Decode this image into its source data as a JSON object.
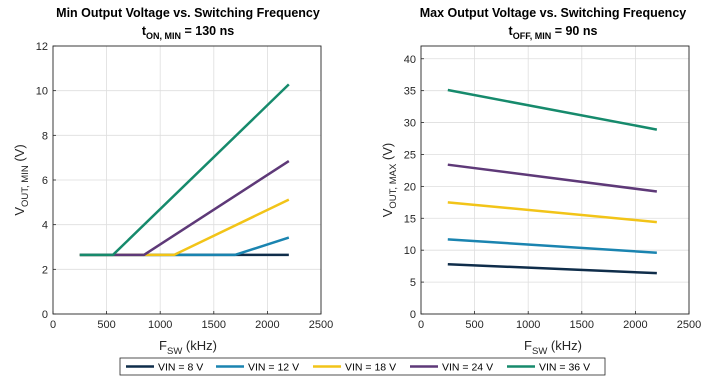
{
  "legend": {
    "placement": "bottom",
    "entries": [
      {
        "label": "VIN = 8 V",
        "color": "#0f2d4a"
      },
      {
        "label": "VIN = 12 V",
        "color": "#1a84b0"
      },
      {
        "label": "VIN = 18 V",
        "color": "#f2c418"
      },
      {
        "label": "VIN = 24 V",
        "color": "#5e3978"
      },
      {
        "label": "VIN = 36 V",
        "color": "#168a6c"
      }
    ]
  },
  "chart_data": [
    {
      "type": "line",
      "title": "Min Output Voltage vs. Switching Frequency",
      "subtitle": {
        "main": "t",
        "sub": "ON, MIN",
        "rest": " = 130 ns"
      },
      "xlabel": {
        "main": "F",
        "sub": "SW",
        "rest": " (kHz)"
      },
      "ylabel": {
        "main": "V",
        "sub": "OUT, MIN",
        "rest": " (V)"
      },
      "xlim": [
        0,
        2500
      ],
      "ylim": [
        0,
        12
      ],
      "xticks": [
        0,
        500,
        1000,
        1500,
        2000,
        2500
      ],
      "yticks": [
        0,
        2,
        4,
        6,
        8,
        10,
        12
      ],
      "grid": true,
      "series": [
        {
          "name": "VIN = 8 V",
          "color": "#0f2d4a",
          "x": [
            250,
            2200
          ],
          "y": [
            2.65,
            2.65
          ]
        },
        {
          "name": "VIN = 12 V",
          "color": "#1a84b0",
          "x": [
            250,
            1700,
            2200
          ],
          "y": [
            2.65,
            2.65,
            3.42
          ]
        },
        {
          "name": "VIN = 18 V",
          "color": "#f2c418",
          "x": [
            250,
            1130,
            2200
          ],
          "y": [
            2.65,
            2.65,
            5.12
          ]
        },
        {
          "name": "VIN = 24 V",
          "color": "#5e3978",
          "x": [
            250,
            850,
            2200
          ],
          "y": [
            2.65,
            2.65,
            6.85
          ]
        },
        {
          "name": "VIN = 36 V",
          "color": "#168a6c",
          "x": [
            250,
            560,
            2200
          ],
          "y": [
            2.65,
            2.65,
            10.28
          ]
        }
      ]
    },
    {
      "type": "line",
      "title": "Max Output Voltage vs. Switching Frequency",
      "subtitle": {
        "main": "t",
        "sub": "OFF, MIN",
        "rest": " = 90 ns"
      },
      "xlabel": {
        "main": "F",
        "sub": "SW",
        "rest": " (kHz)"
      },
      "ylabel": {
        "main": "V",
        "sub": "OUT, MAX",
        "rest": " (V)"
      },
      "xlim": [
        0,
        2500
      ],
      "ylim": [
        0,
        42
      ],
      "xticks": [
        0,
        500,
        1000,
        1500,
        2000,
        2500
      ],
      "yticks": [
        0,
        5,
        10,
        15,
        20,
        25,
        30,
        35,
        40
      ],
      "grid": true,
      "series": [
        {
          "name": "VIN = 8 V",
          "color": "#0f2d4a",
          "x": [
            250,
            2200
          ],
          "y": [
            7.8,
            6.4
          ]
        },
        {
          "name": "VIN = 12 V",
          "color": "#1a84b0",
          "x": [
            250,
            2200
          ],
          "y": [
            11.7,
            9.6
          ]
        },
        {
          "name": "VIN = 18 V",
          "color": "#f2c418",
          "x": [
            250,
            2200
          ],
          "y": [
            17.5,
            14.4
          ]
        },
        {
          "name": "VIN = 24 V",
          "color": "#5e3978",
          "x": [
            250,
            2200
          ],
          "y": [
            23.4,
            19.2
          ]
        },
        {
          "name": "VIN = 36 V",
          "color": "#168a6c",
          "x": [
            250,
            2200
          ],
          "y": [
            35.1,
            28.9
          ]
        }
      ]
    }
  ]
}
